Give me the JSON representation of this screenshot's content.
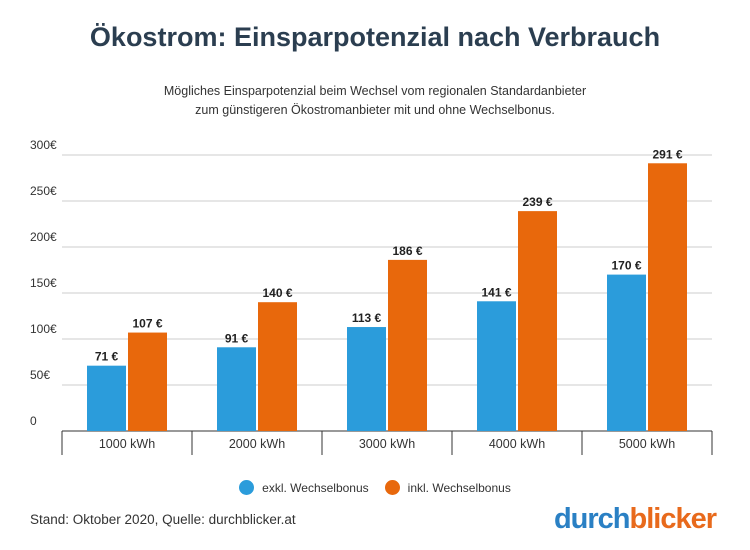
{
  "title": "Ökostrom: Einsparpotenzial nach Verbrauch",
  "subtitle_line1": "Mögliches Einsparpotenzial beim Wechsel vom regionalen Standardanbieter",
  "subtitle_line2": "zum günstigeren Ökostromanbieter mit und ohne Wechselbonus.",
  "legend": {
    "exkl": "exkl. Wechselbonus",
    "inkl": "inkl. Wechselbonus"
  },
  "footer": "Stand: Oktober 2020, Quelle: durchblicker.at",
  "logo": {
    "part1": "durch",
    "part2": "blicker"
  },
  "colors": {
    "exkl": "#2b9cdb",
    "inkl": "#e8680c",
    "grid": "#cccccc",
    "axis": "#333333"
  },
  "chart_data": {
    "type": "bar",
    "title": "Ökostrom: Einsparpotenzial nach Verbrauch",
    "xlabel": "",
    "ylabel": "",
    "categories": [
      "1000 kWh",
      "2000 kWh",
      "3000 kWh",
      "4000 kWh",
      "5000 kWh"
    ],
    "series": [
      {
        "name": "exkl. Wechselbonus",
        "values": [
          71,
          91,
          113,
          141,
          170
        ],
        "labels": [
          "71 €",
          "91 €",
          "113 €",
          "141 €",
          "170 €"
        ]
      },
      {
        "name": "inkl. Wechselbonus",
        "values": [
          107,
          140,
          186,
          239,
          291
        ],
        "labels": [
          "107 €",
          "140 €",
          "186 €",
          "239 €",
          "291 €"
        ]
      }
    ],
    "ylim": [
      0,
      300
    ],
    "yticks": [
      0,
      50,
      100,
      150,
      200,
      250,
      300
    ],
    "ytick_labels": [
      "0",
      "50€",
      "100€",
      "150€",
      "200€",
      "250€",
      "300€"
    ],
    "grid": true,
    "legend_position": "bottom-center"
  }
}
